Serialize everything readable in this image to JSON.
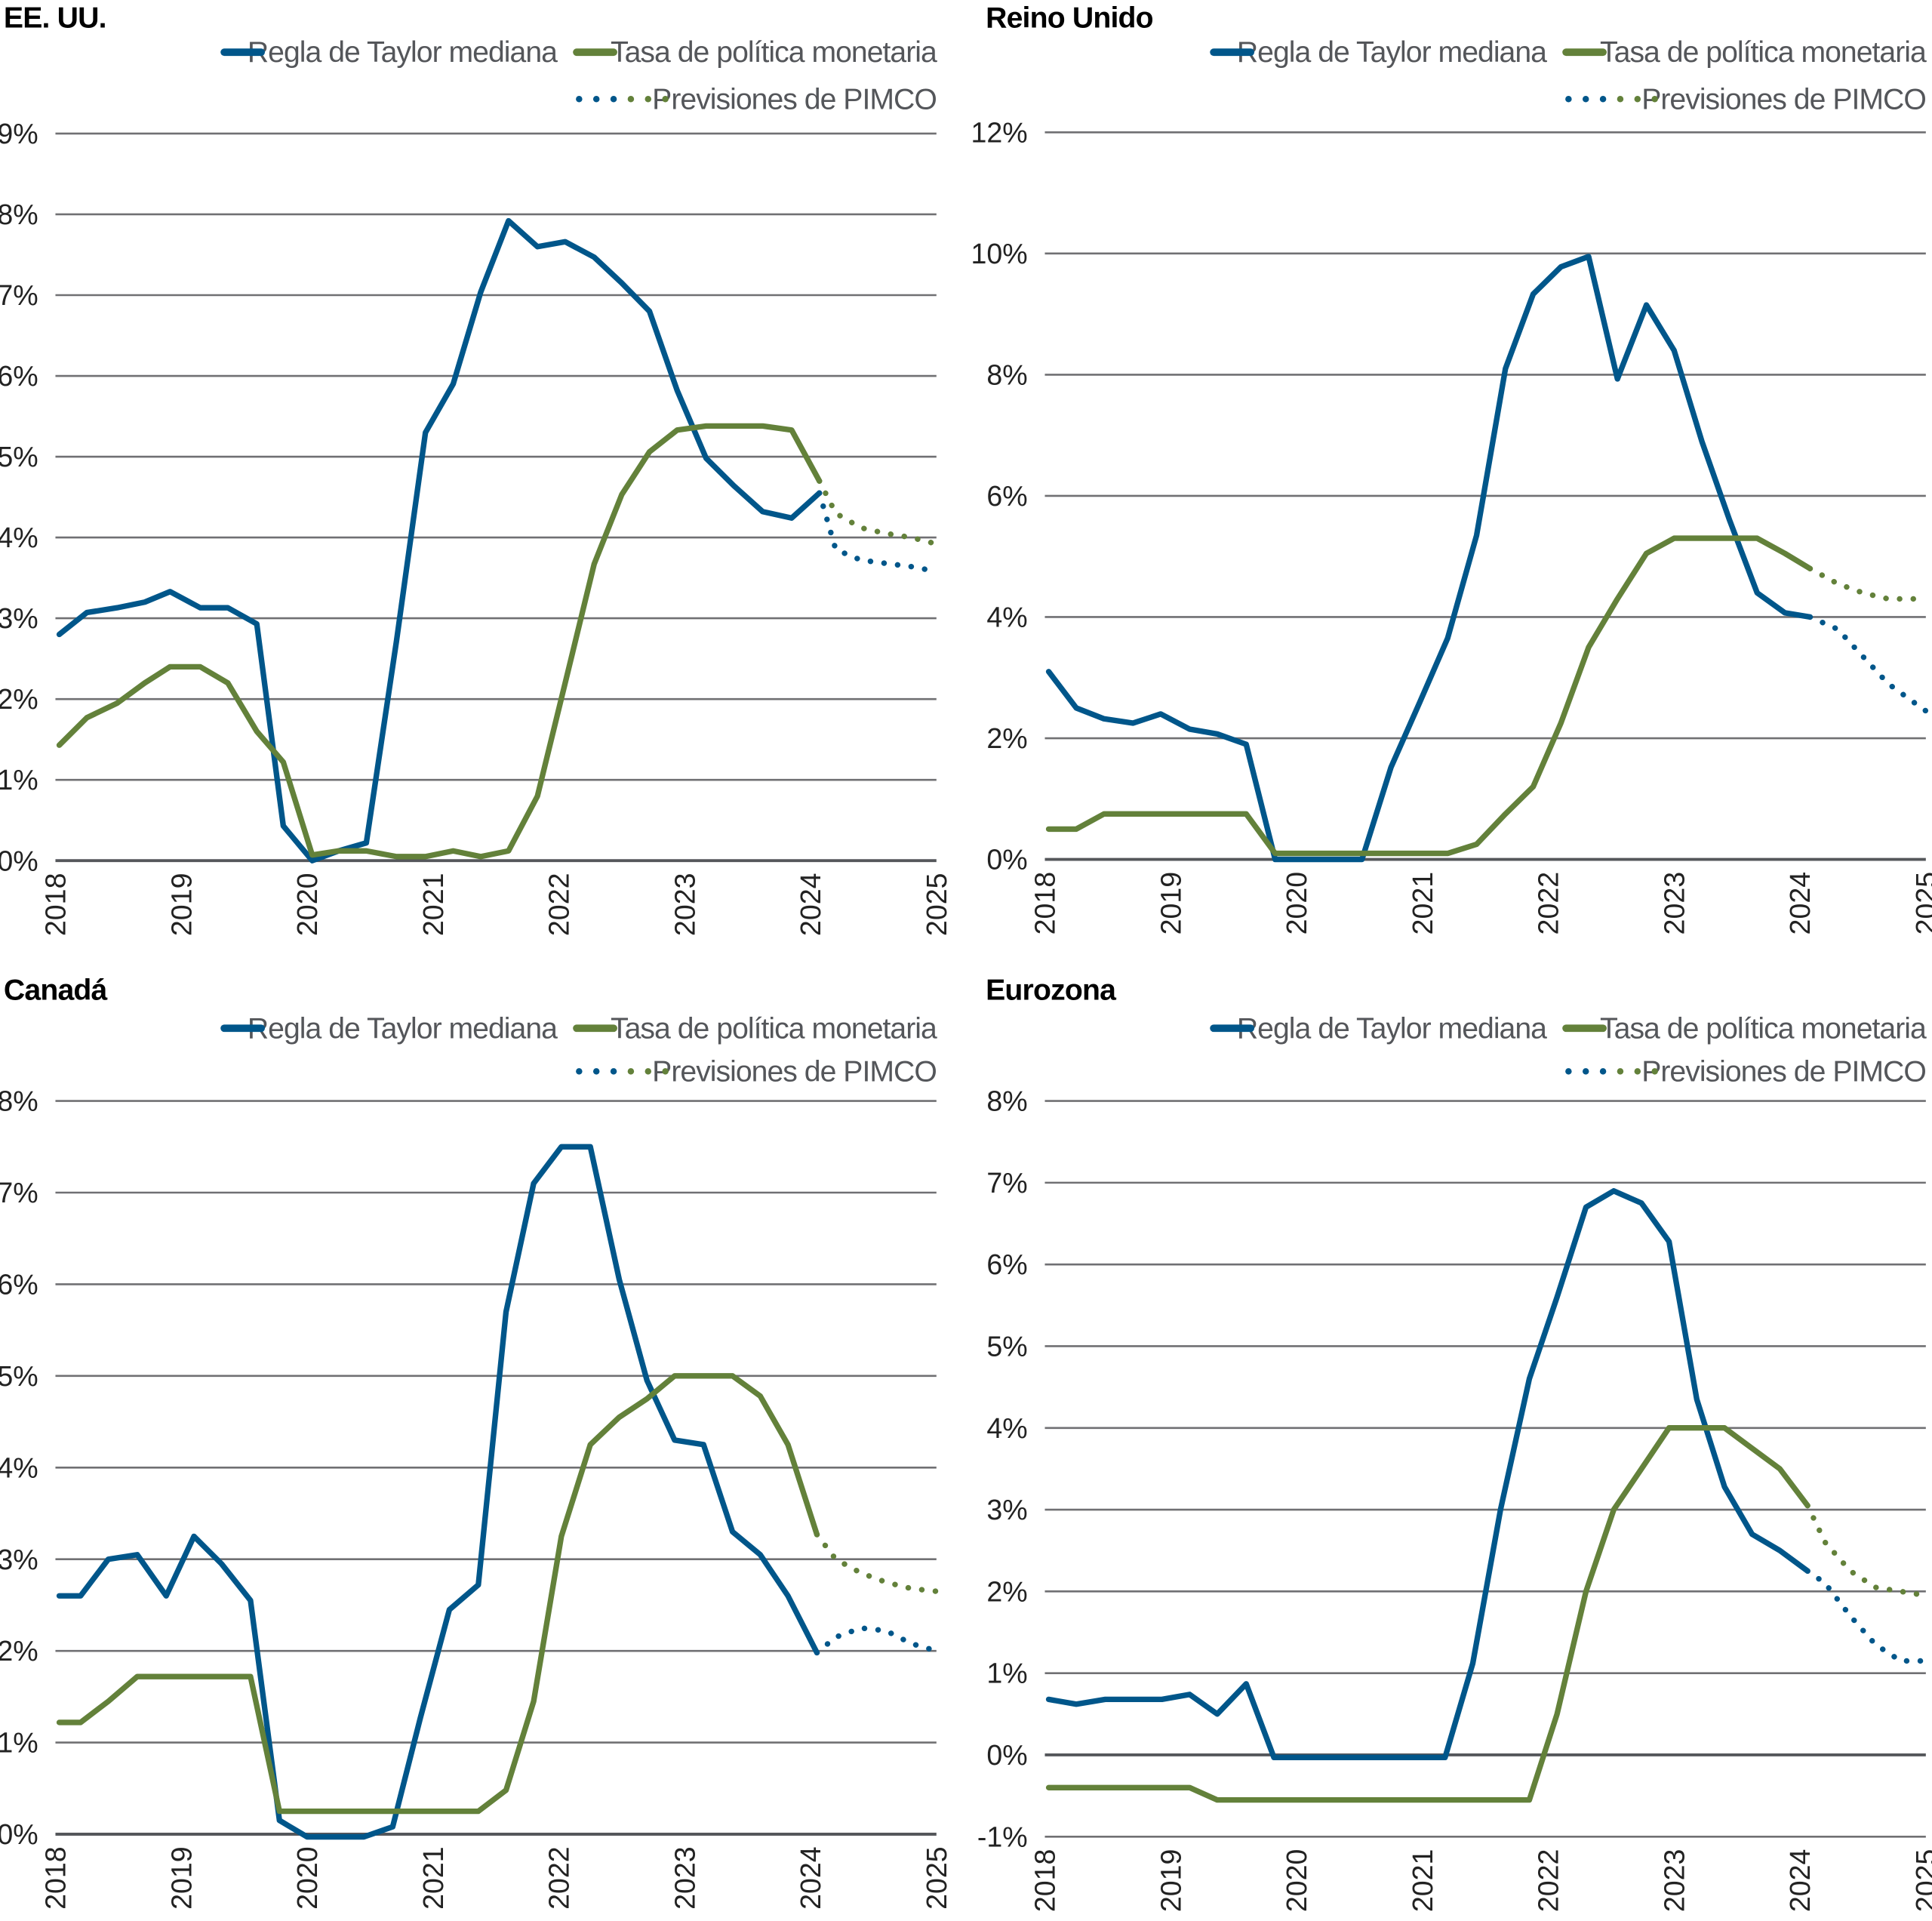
{
  "legend": {
    "taylor": "Regla de Taylor mediana",
    "policy": "Tasa de política monetaria",
    "forecast": "Previsiones de PIMCO"
  },
  "colors": {
    "taylor": "#00568a",
    "policy": "#63813a",
    "text": "#54565a",
    "grid": "#707073"
  },
  "chart_data": [
    {
      "type": "line",
      "title": "EE. UU.",
      "xlabel": "",
      "ylabel": "",
      "x_ticks": [
        "2018",
        "2019",
        "2020",
        "2021",
        "2022",
        "2023",
        "2024",
        "2025"
      ],
      "xlim": [
        2018,
        2025
      ],
      "ylim": [
        0,
        9
      ],
      "y_ticks": [
        0,
        1,
        2,
        3,
        4,
        5,
        6,
        7,
        8,
        9
      ],
      "y_tick_labels": [
        "0%",
        "1%",
        "2%",
        "3%",
        "4%",
        "5%",
        "6%",
        "7%",
        "8%",
        "9%"
      ],
      "grid": true,
      "legend_position": "top-right",
      "series": [
        {
          "name": "Regla de Taylor mediana",
          "key": "taylor",
          "style": "solid",
          "x": [
            2018.03,
            2018.25,
            2018.49,
            2018.71,
            2018.91,
            2019.15,
            2019.37,
            2019.6,
            2019.81,
            2020.04,
            2020.25,
            2020.47,
            2020.71,
            2020.94,
            2021.16,
            2021.38,
            2021.6,
            2021.83,
            2022.05,
            2022.28,
            2022.5,
            2022.72,
            2022.94,
            2023.17,
            2023.39,
            2023.62,
            2023.85,
            2024.07
          ],
          "y": [
            2.8,
            3.07,
            3.13,
            3.2,
            3.33,
            3.13,
            3.13,
            2.93,
            0.43,
            0.0,
            0.12,
            0.22,
            2.72,
            5.3,
            5.9,
            7.04,
            7.92,
            7.6,
            7.66,
            7.47,
            7.15,
            6.8,
            5.82,
            4.98,
            4.64,
            4.32,
            4.24,
            4.55
          ]
        },
        {
          "name": "Tasa de política monetaria",
          "key": "policy",
          "style": "solid",
          "x": [
            2018.03,
            2018.25,
            2018.49,
            2018.71,
            2018.91,
            2019.15,
            2019.37,
            2019.6,
            2019.81,
            2020.04,
            2020.25,
            2020.47,
            2020.71,
            2020.94,
            2021.16,
            2021.38,
            2021.6,
            2021.83,
            2022.05,
            2022.28,
            2022.5,
            2022.72,
            2022.94,
            2023.17,
            2023.39,
            2023.62,
            2023.85,
            2024.07
          ],
          "y": [
            1.43,
            1.77,
            1.95,
            2.2,
            2.4,
            2.4,
            2.2,
            1.6,
            1.22,
            0.07,
            0.12,
            0.12,
            0.05,
            0.05,
            0.12,
            0.05,
            0.12,
            0.8,
            2.2,
            3.67,
            4.53,
            5.06,
            5.33,
            5.38,
            5.38,
            5.38,
            5.33,
            4.7
          ]
        },
        {
          "name": "Previsiones de PIMCO (Taylor)",
          "key": "taylor",
          "style": "dotted",
          "x": [
            2024.07,
            2024.2,
            2024.4,
            2024.6,
            2024.8,
            2025.0
          ],
          "y": [
            4.55,
            3.85,
            3.72,
            3.68,
            3.64,
            3.58
          ]
        },
        {
          "name": "Previsiones de PIMCO (Tasa)",
          "key": "policy",
          "style": "dotted",
          "x": [
            2024.07,
            2024.2,
            2024.4,
            2024.6,
            2024.8,
            2025.0
          ],
          "y": [
            4.7,
            4.3,
            4.12,
            4.05,
            4.0,
            3.92
          ]
        }
      ]
    },
    {
      "type": "line",
      "title": "Reino Unido",
      "xlabel": "",
      "ylabel": "",
      "x_ticks": [
        "2018",
        "2019",
        "2020",
        "2021",
        "2022",
        "2023",
        "2024",
        "2025"
      ],
      "xlim": [
        2018,
        2025
      ],
      "ylim": [
        0,
        12
      ],
      "y_ticks": [
        0,
        2,
        4,
        6,
        8,
        10,
        12
      ],
      "y_tick_labels": [
        "0%",
        "2%",
        "4%",
        "6%",
        "8%",
        "10%",
        "12%"
      ],
      "grid": true,
      "legend_position": "top-right",
      "series": [
        {
          "name": "Regla de Taylor mediana",
          "key": "taylor",
          "style": "solid",
          "x": [
            2018.03,
            2018.25,
            2018.47,
            2018.7,
            2018.92,
            2019.15,
            2019.37,
            2019.6,
            2019.83,
            2020.08,
            2020.3,
            2020.52,
            2020.75,
            2020.98,
            2021.2,
            2021.43,
            2021.66,
            2021.88,
            2022.1,
            2022.32,
            2022.55,
            2022.78,
            2023.0,
            2023.22,
            2023.44,
            2023.66,
            2023.88,
            2024.08
          ],
          "y": [
            3.1,
            2.5,
            2.32,
            2.25,
            2.4,
            2.15,
            2.07,
            1.9,
            0.0,
            0.0,
            0.0,
            0.0,
            1.52,
            2.6,
            3.65,
            5.35,
            8.1,
            9.33,
            9.78,
            9.95,
            7.93,
            9.15,
            8.4,
            6.9,
            5.6,
            4.4,
            4.07,
            4.0
          ]
        },
        {
          "name": "Tasa de política monetaria",
          "key": "policy",
          "style": "solid",
          "x": [
            2018.03,
            2018.25,
            2018.47,
            2018.7,
            2018.92,
            2019.15,
            2019.37,
            2019.6,
            2019.83,
            2020.08,
            2020.3,
            2020.52,
            2020.75,
            2020.98,
            2021.2,
            2021.43,
            2021.66,
            2021.88,
            2022.1,
            2022.32,
            2022.55,
            2022.78,
            2023.0,
            2023.22,
            2023.44,
            2023.66,
            2023.88,
            2024.08
          ],
          "y": [
            0.5,
            0.5,
            0.75,
            0.75,
            0.75,
            0.75,
            0.75,
            0.75,
            0.1,
            0.1,
            0.1,
            0.1,
            0.1,
            0.1,
            0.1,
            0.25,
            0.75,
            1.2,
            2.25,
            3.5,
            4.3,
            5.05,
            5.3,
            5.3,
            5.3,
            5.3,
            5.05,
            4.8
          ]
        },
        {
          "name": "Previsiones de PIMCO (Taylor)",
          "key": "taylor",
          "style": "dotted",
          "x": [
            2024.08,
            2024.3,
            2024.5,
            2024.7,
            2024.9,
            2025.0
          ],
          "y": [
            4.0,
            3.8,
            3.35,
            2.9,
            2.6,
            2.45
          ]
        },
        {
          "name": "Previsiones de PIMCO (Tasa)",
          "key": "policy",
          "style": "dotted",
          "x": [
            2024.08,
            2024.3,
            2024.5,
            2024.7,
            2024.9,
            2025.0
          ],
          "y": [
            4.8,
            4.55,
            4.4,
            4.3,
            4.3,
            4.3
          ]
        }
      ]
    },
    {
      "type": "line",
      "title": "Canadá",
      "xlabel": "",
      "ylabel": "",
      "x_ticks": [
        "2018",
        "2019",
        "2020",
        "2021",
        "2022",
        "2023",
        "2024",
        "2025"
      ],
      "xlim": [
        2018,
        2025
      ],
      "ylim": [
        0,
        8
      ],
      "y_ticks": [
        0,
        1,
        2,
        3,
        4,
        5,
        6,
        7,
        8
      ],
      "y_tick_labels": [
        "0%",
        "1%",
        "2%",
        "3%",
        "4%",
        "5%",
        "6%",
        "7%",
        "8%"
      ],
      "grid": true,
      "legend_position": "top-right",
      "series": [
        {
          "name": "Regla de Taylor mediana",
          "key": "taylor",
          "style": "solid",
          "x": [
            2018.03,
            2018.2,
            2018.42,
            2018.65,
            2018.88,
            2019.1,
            2019.32,
            2019.55,
            2019.78,
            2020.0,
            2020.22,
            2020.45,
            2020.68,
            2020.9,
            2021.13,
            2021.36,
            2021.58,
            2021.8,
            2022.02,
            2022.25,
            2022.48,
            2022.7,
            2022.92,
            2023.15,
            2023.38,
            2023.6,
            2023.82,
            2024.05
          ],
          "y": [
            2.6,
            2.6,
            3.0,
            3.05,
            2.6,
            3.25,
            2.95,
            2.55,
            0.15,
            -0.03,
            -0.03,
            -0.03,
            0.08,
            1.27,
            2.45,
            2.72,
            5.7,
            7.1,
            7.5,
            7.5,
            6.05,
            4.95,
            4.3,
            4.25,
            3.3,
            3.05,
            2.6,
            1.98
          ]
        },
        {
          "name": "Tasa de política monetaria",
          "key": "policy",
          "style": "solid",
          "x": [
            2018.03,
            2018.2,
            2018.42,
            2018.65,
            2018.88,
            2019.1,
            2019.32,
            2019.55,
            2019.78,
            2020.0,
            2020.22,
            2020.45,
            2020.68,
            2020.9,
            2021.13,
            2021.36,
            2021.58,
            2021.8,
            2022.02,
            2022.25,
            2022.48,
            2022.7,
            2022.92,
            2023.15,
            2023.38,
            2023.6,
            2023.82,
            2024.05
          ],
          "y": [
            1.22,
            1.22,
            1.45,
            1.72,
            1.72,
            1.72,
            1.72,
            1.72,
            0.25,
            0.25,
            0.25,
            0.25,
            0.25,
            0.25,
            0.25,
            0.25,
            0.48,
            1.45,
            3.25,
            4.25,
            4.55,
            4.75,
            5.0,
            5.0,
            5.0,
            4.78,
            4.25,
            3.27
          ]
        },
        {
          "name": "Previsiones de PIMCO (Taylor)",
          "key": "taylor",
          "style": "dotted",
          "x": [
            2024.05,
            2024.2,
            2024.4,
            2024.6,
            2024.8,
            2025.0
          ],
          "y": [
            1.98,
            2.15,
            2.25,
            2.22,
            2.08,
            2.0
          ]
        },
        {
          "name": "Previsiones de PIMCO (Tasa)",
          "key": "policy",
          "style": "dotted",
          "x": [
            2024.05,
            2024.2,
            2024.4,
            2024.6,
            2024.8,
            2025.0
          ],
          "y": [
            3.27,
            3.0,
            2.85,
            2.75,
            2.68,
            2.65
          ]
        }
      ]
    },
    {
      "type": "line",
      "title": "Eurozona",
      "xlabel": "",
      "ylabel": "",
      "x_ticks": [
        "2018",
        "2019",
        "2020",
        "2021",
        "2022",
        "2023",
        "2024",
        "2025"
      ],
      "xlim": [
        2018,
        2025
      ],
      "ylim": [
        -1,
        8
      ],
      "y_ticks": [
        -1,
        0,
        1,
        2,
        3,
        4,
        5,
        6,
        7,
        8
      ],
      "y_tick_labels": [
        "-1%",
        "0%",
        "1%",
        "2%",
        "3%",
        "4%",
        "5%",
        "6%",
        "7%",
        "8%"
      ],
      "grid": true,
      "legend_position": "top-right",
      "series": [
        {
          "name": "Regla de Taylor mediana",
          "key": "taylor",
          "style": "solid",
          "x": [
            2018.03,
            2018.25,
            2018.48,
            2018.7,
            2018.93,
            2019.15,
            2019.37,
            2019.6,
            2019.82,
            2020.05,
            2020.28,
            2020.5,
            2020.73,
            2020.96,
            2021.18,
            2021.4,
            2021.62,
            2021.85,
            2022.07,
            2022.3,
            2022.52,
            2022.74,
            2022.96,
            2023.18,
            2023.4,
            2023.62,
            2023.84,
            2024.06
          ],
          "y": [
            0.68,
            0.62,
            0.68,
            0.68,
            0.68,
            0.74,
            0.5,
            0.87,
            -0.03,
            -0.03,
            -0.03,
            -0.03,
            -0.03,
            -0.03,
            -0.03,
            1.12,
            3.0,
            4.6,
            5.6,
            6.7,
            6.9,
            6.75,
            6.28,
            4.35,
            3.28,
            2.7,
            2.5,
            2.25
          ]
        },
        {
          "name": "Tasa de política monetaria",
          "key": "policy",
          "style": "solid",
          "x": [
            2018.03,
            2018.25,
            2018.48,
            2018.7,
            2018.93,
            2019.15,
            2019.37,
            2019.6,
            2019.82,
            2020.05,
            2020.28,
            2020.5,
            2020.73,
            2020.96,
            2021.18,
            2021.4,
            2021.62,
            2021.85,
            2022.07,
            2022.3,
            2022.52,
            2022.74,
            2022.96,
            2023.18,
            2023.4,
            2023.62,
            2023.84,
            2024.06
          ],
          "y": [
            -0.4,
            -0.4,
            -0.4,
            -0.4,
            -0.4,
            -0.4,
            -0.55,
            -0.55,
            -0.55,
            -0.55,
            -0.55,
            -0.55,
            -0.55,
            -0.55,
            -0.55,
            -0.55,
            -0.55,
            -0.55,
            0.5,
            2.0,
            3.0,
            3.5,
            4.0,
            4.0,
            4.0,
            3.75,
            3.5,
            3.05
          ]
        },
        {
          "name": "Previsiones de PIMCO (Taylor)",
          "key": "taylor",
          "style": "dotted",
          "x": [
            2024.06,
            2024.2,
            2024.4,
            2024.6,
            2024.8,
            2025.0
          ],
          "y": [
            2.25,
            2.1,
            1.7,
            1.35,
            1.15,
            1.15
          ]
        },
        {
          "name": "Previsiones de PIMCO (Tasa)",
          "key": "policy",
          "style": "dotted",
          "x": [
            2024.06,
            2024.2,
            2024.4,
            2024.6,
            2024.8,
            2025.0
          ],
          "y": [
            3.05,
            2.6,
            2.25,
            2.05,
            2.0,
            1.95
          ]
        }
      ]
    }
  ]
}
